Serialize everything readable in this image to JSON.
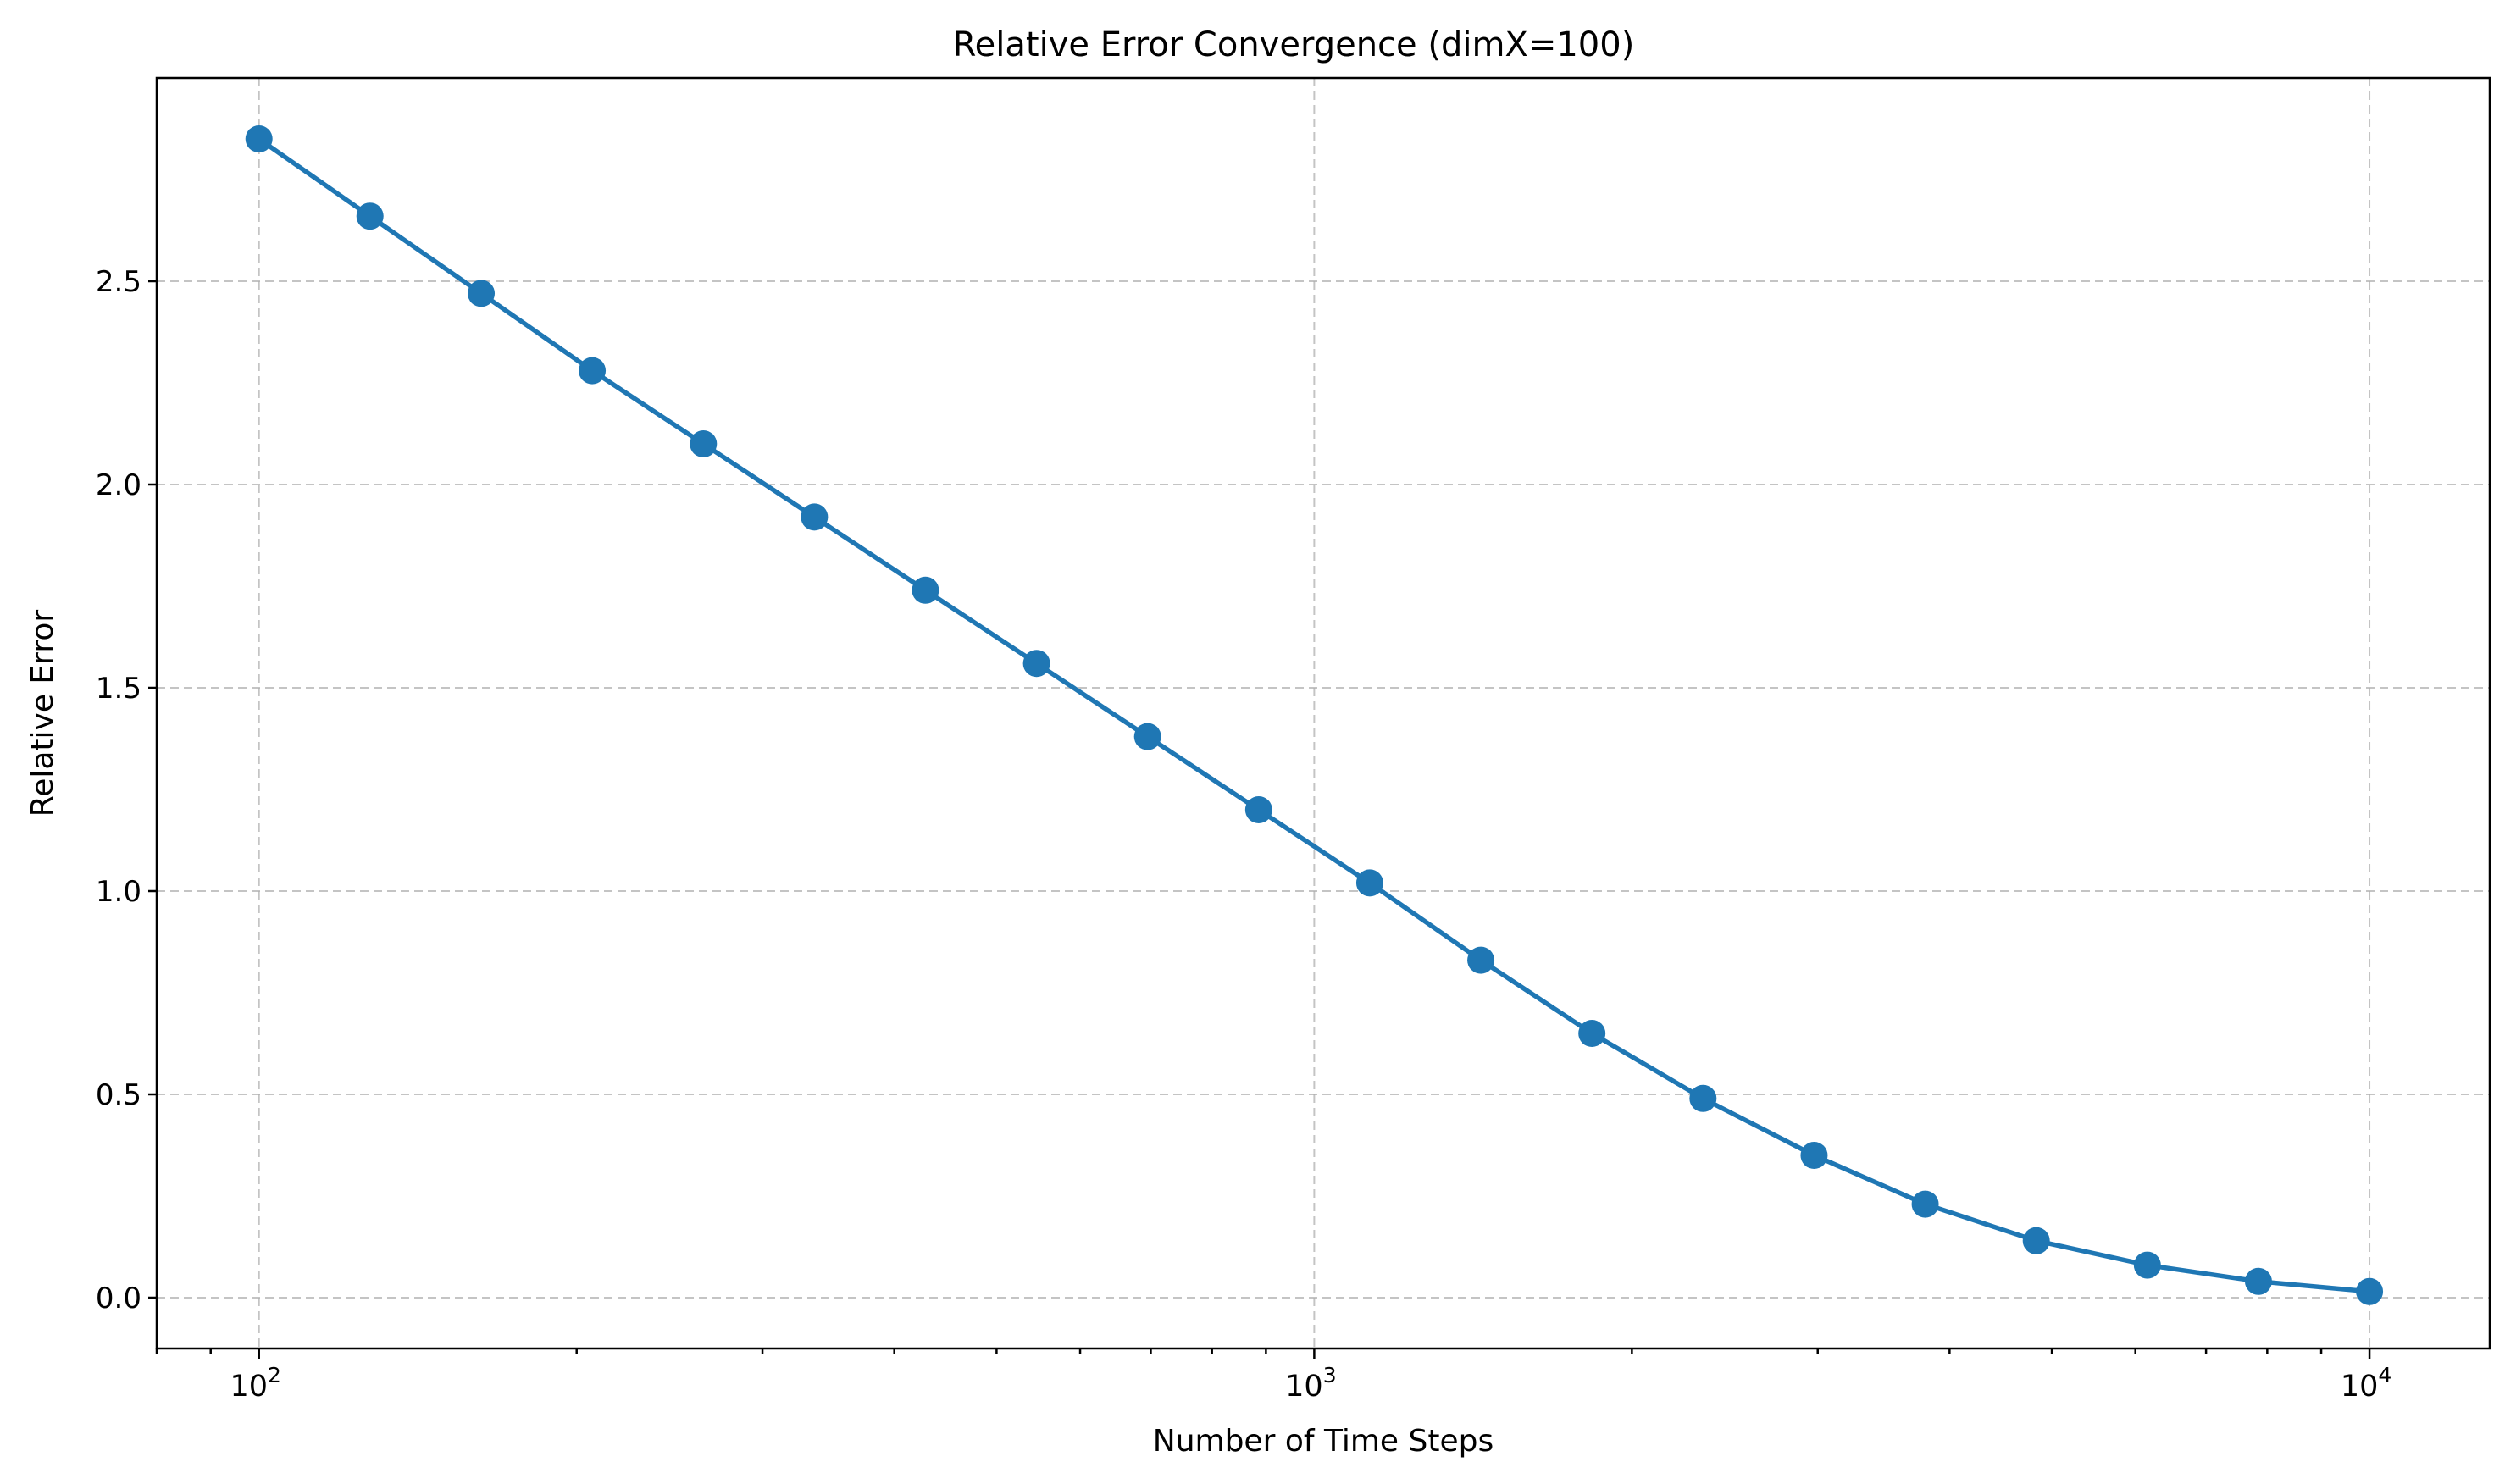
{
  "chart_data": {
    "type": "line",
    "title": "Relative Error Convergence (dimX=100)",
    "xlabel": "Number of Time Steps",
    "ylabel": "Relative Error",
    "xscale": "log",
    "xlim": [
      80,
      13000
    ],
    "ylim": [
      -0.125,
      3.0
    ],
    "grid": true,
    "x_ticks": [
      {
        "value": 100,
        "base": "10",
        "exp": "2"
      },
      {
        "value": 1000,
        "base": "10",
        "exp": "3"
      },
      {
        "value": 10000,
        "base": "10",
        "exp": "4"
      }
    ],
    "y_ticks": [
      {
        "value": 0.0,
        "label": "0.0"
      },
      {
        "value": 0.5,
        "label": "0.5"
      },
      {
        "value": 1.0,
        "label": "1.0"
      },
      {
        "value": 1.5,
        "label": "1.5"
      },
      {
        "value": 2.0,
        "label": "2.0"
      },
      {
        "value": 2.5,
        "label": "2.5"
      }
    ],
    "series": [
      {
        "color": "#1f77b4",
        "marker": "circle",
        "x": [
          100,
          127.4,
          162.4,
          206.9,
          263.7,
          336.0,
          428.1,
          545.6,
          695.2,
          885.9,
          1128.8,
          1438.4,
          1832.9,
          2335.7,
          2976.4,
          3792.7,
          4832.9,
          6158.5,
          7847.6,
          10000
        ],
        "values": [
          2.85,
          2.66,
          2.47,
          2.28,
          2.1,
          1.92,
          1.74,
          1.56,
          1.38,
          1.2,
          1.02,
          0.83,
          0.65,
          0.49,
          0.35,
          0.23,
          0.14,
          0.08,
          0.04,
          0.015
        ]
      }
    ]
  }
}
